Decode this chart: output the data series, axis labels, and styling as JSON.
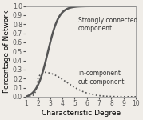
{
  "title": "",
  "xlabel": "Characteristic Degree",
  "ylabel": "Percentage of Network",
  "xlim": [
    1,
    10
  ],
  "ylim": [
    0,
    1
  ],
  "xticks": [
    1,
    2,
    3,
    4,
    5,
    6,
    7,
    8,
    9,
    10
  ],
  "yticks": [
    0.0,
    0.1,
    0.2,
    0.3,
    0.4,
    0.5,
    0.6,
    0.7,
    0.8,
    0.9,
    1.0
  ],
  "scc_label": "Strongly connected\ncomponent",
  "inout_label": "in-component\nout-component",
  "background_color": "#f0ede8",
  "line_color": "#555555",
  "xlabel_fontsize": 6.5,
  "ylabel_fontsize": 6.5,
  "tick_fontsize": 5.5,
  "label_fontsize": 5.5
}
